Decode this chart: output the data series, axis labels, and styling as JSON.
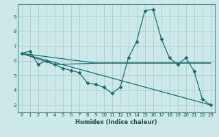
{
  "xlabel": "Humidex (Indice chaleur)",
  "bg_color": "#cce8e8",
  "grid_color": "#aacccc",
  "line_color": "#1a6b6b",
  "xlim": [
    -0.5,
    23.5
  ],
  "ylim": [
    2.5,
    9.85
  ],
  "xticks": [
    0,
    1,
    2,
    3,
    4,
    5,
    6,
    7,
    8,
    9,
    10,
    11,
    12,
    13,
    14,
    15,
    16,
    17,
    18,
    19,
    20,
    21,
    22,
    23
  ],
  "yticks": [
    3,
    4,
    5,
    6,
    7,
    8,
    9
  ],
  "line1_x": [
    0,
    1,
    2,
    3,
    4,
    5,
    6,
    7,
    8,
    9,
    10,
    11,
    12,
    13,
    14,
    15,
    16,
    17,
    18,
    19,
    20,
    21,
    22,
    23
  ],
  "line1_y": [
    6.5,
    6.65,
    5.75,
    6.0,
    5.75,
    5.5,
    5.35,
    5.2,
    4.5,
    4.4,
    4.2,
    3.8,
    4.2,
    6.2,
    7.3,
    9.4,
    9.5,
    7.5,
    6.2,
    5.75,
    6.2,
    5.3,
    3.4,
    3.0
  ],
  "line2_x": [
    0,
    4,
    10,
    23
  ],
  "line2_y": [
    6.5,
    5.75,
    5.85,
    5.85
  ],
  "line3_x": [
    0,
    23
  ],
  "line3_y": [
    6.5,
    3.0
  ],
  "line4_x": [
    0,
    9,
    14,
    23
  ],
  "line4_y": [
    6.5,
    5.85,
    5.85,
    5.85
  ]
}
